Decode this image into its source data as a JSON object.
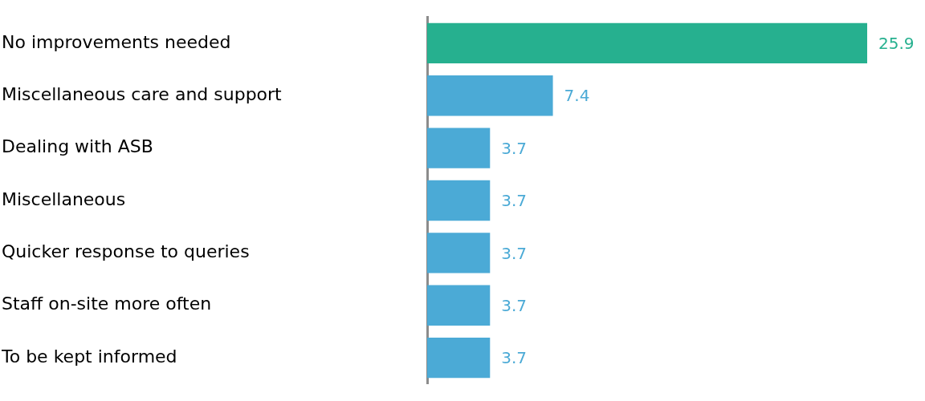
{
  "chart_data": {
    "type": "bar",
    "orientation": "horizontal",
    "categories": [
      "No improvements needed",
      "Miscellaneous care and support",
      "Dealing with ASB",
      "Miscellaneous",
      "Quicker response to queries",
      "Staff on-site more often",
      "To be kept informed"
    ],
    "values": [
      25.9,
      7.4,
      3.7,
      3.7,
      3.7,
      3.7,
      3.7
    ],
    "colors": [
      "#26b08f",
      "#4baad6",
      "#4baad6",
      "#4baad6",
      "#4baad6",
      "#4baad6",
      "#4baad6"
    ],
    "data_labels": true,
    "legend": false,
    "tick_labels": "y"
  }
}
